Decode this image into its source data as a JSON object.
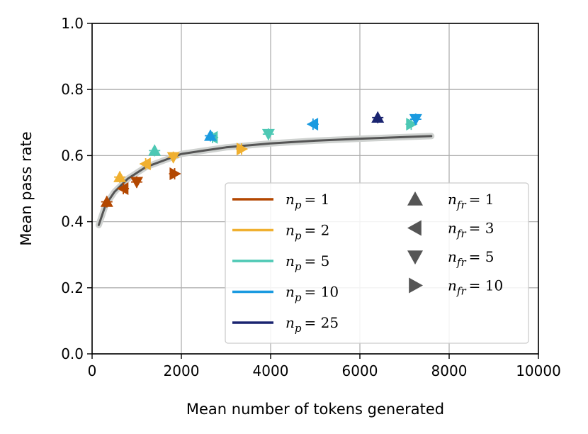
{
  "chart_data": {
    "type": "scatter",
    "title": "",
    "xlabel": "Mean number of tokens generated",
    "ylabel": "Mean pass rate",
    "xlim": [
      0,
      10000
    ],
    "ylim": [
      0.0,
      1.0
    ],
    "grid": true,
    "xticks": [
      0,
      2000,
      4000,
      6000,
      8000,
      10000
    ],
    "xtick_labels": [
      "0",
      "2000",
      "4000",
      "6000",
      "8000",
      "10000"
    ],
    "yticks": [
      0.0,
      0.2,
      0.4,
      0.6,
      0.8,
      1.0
    ],
    "ytick_labels": [
      "0.0",
      "0.2",
      "0.4",
      "0.6",
      "0.8",
      "1.0"
    ],
    "legend_placement": "lower-right",
    "fit_curve": {
      "color": "#555555",
      "points": [
        {
          "x": 150,
          "y": 0.39
        },
        {
          "x": 300,
          "y": 0.45
        },
        {
          "x": 500,
          "y": 0.49
        },
        {
          "x": 800,
          "y": 0.53
        },
        {
          "x": 1200,
          "y": 0.565
        },
        {
          "x": 1600,
          "y": 0.585
        },
        {
          "x": 2000,
          "y": 0.605
        },
        {
          "x": 2500,
          "y": 0.615
        },
        {
          "x": 3000,
          "y": 0.625
        },
        {
          "x": 4000,
          "y": 0.637
        },
        {
          "x": 5000,
          "y": 0.645
        },
        {
          "x": 6000,
          "y": 0.651
        },
        {
          "x": 7000,
          "y": 0.656
        },
        {
          "x": 7600,
          "y": 0.659
        }
      ]
    },
    "series": [
      {
        "name": "n_p = 1",
        "np": "1",
        "color": "#b34700",
        "points": [
          {
            "x": 330,
            "y": 0.46,
            "marker": "triangle-up"
          },
          {
            "x": 700,
            "y": 0.5,
            "marker": "triangle-left"
          },
          {
            "x": 1000,
            "y": 0.52,
            "marker": "triangle-down"
          },
          {
            "x": 1850,
            "y": 0.545,
            "marker": "triangle-right"
          }
        ]
      },
      {
        "name": "n_p = 2",
        "np": "2",
        "color": "#f0b030",
        "points": [
          {
            "x": 620,
            "y": 0.535,
            "marker": "triangle-up"
          },
          {
            "x": 1200,
            "y": 0.575,
            "marker": "triangle-left"
          },
          {
            "x": 1820,
            "y": 0.595,
            "marker": "triangle-down"
          },
          {
            "x": 3350,
            "y": 0.62,
            "marker": "triangle-right"
          }
        ]
      },
      {
        "name": "n_p = 5",
        "np": "5",
        "color": "#4dc8b4",
        "points": [
          {
            "x": 1400,
            "y": 0.615,
            "marker": "triangle-up"
          },
          {
            "x": 2700,
            "y": 0.655,
            "marker": "triangle-left"
          },
          {
            "x": 3950,
            "y": 0.665,
            "marker": "triangle-down"
          },
          {
            "x": 7150,
            "y": 0.695,
            "marker": "triangle-right"
          }
        ]
      },
      {
        "name": "n_p = 10",
        "np": "10",
        "color": "#1a9ae0",
        "points": [
          {
            "x": 2650,
            "y": 0.66,
            "marker": "triangle-up"
          },
          {
            "x": 4950,
            "y": 0.695,
            "marker": "triangle-left"
          },
          {
            "x": 7250,
            "y": 0.71,
            "marker": "triangle-down"
          }
        ]
      },
      {
        "name": "n_p = 25",
        "np": "25",
        "color": "#1a2470",
        "points": [
          {
            "x": 6400,
            "y": 0.715,
            "marker": "triangle-up"
          }
        ]
      }
    ],
    "marker_legend": [
      {
        "name": "n_fr = 1",
        "nfr": "1",
        "marker": "triangle-up"
      },
      {
        "name": "n_fr = 3",
        "nfr": "3",
        "marker": "triangle-left"
      },
      {
        "name": "n_fr = 5",
        "nfr": "5",
        "marker": "triangle-down"
      },
      {
        "name": "n_fr = 10",
        "nfr": "10",
        "marker": "triangle-right"
      }
    ],
    "marker_legend_color": "#555555"
  }
}
